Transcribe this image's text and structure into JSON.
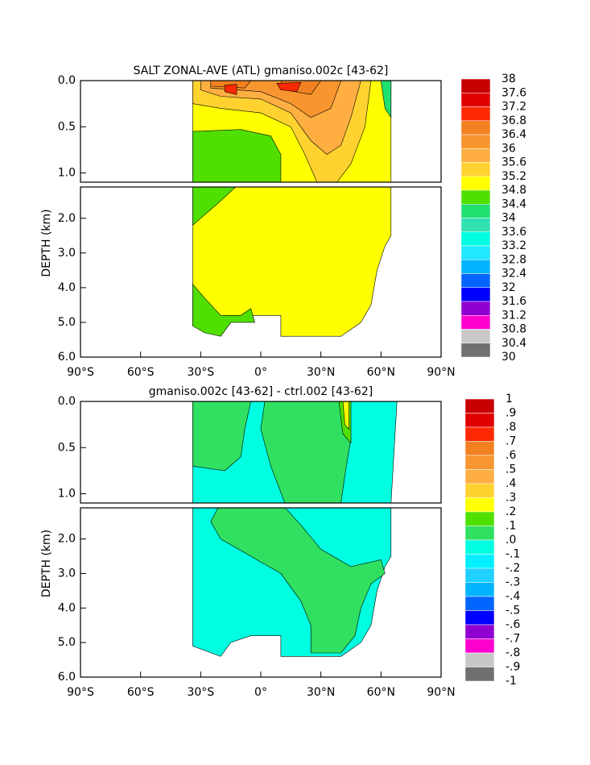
{
  "chart_data": [
    {
      "type": "contour",
      "title": "SALT ZONAL-AVE (ATL) gmaniso.002c [43-62]",
      "ylabel": "DEPTH (km)",
      "xlim": [
        -90,
        90
      ],
      "xticks": [
        {
          "value": -90,
          "label": "90°S"
        },
        {
          "value": -60,
          "label": "60°S"
        },
        {
          "value": -30,
          "label": "30°S"
        },
        {
          "value": 0,
          "label": "0°"
        },
        {
          "value": 30,
          "label": "30°N"
        },
        {
          "value": 60,
          "label": "60°N"
        },
        {
          "value": 90,
          "label": "90°N"
        }
      ],
      "ylim": [
        6,
        0
      ],
      "yranges": [
        [
          0,
          1.1
        ],
        [
          1.1,
          6
        ]
      ],
      "yticks": [
        {
          "value": 0,
          "label": "0.0"
        },
        {
          "value": 0.5,
          "label": "0.5"
        },
        {
          "value": 1,
          "label": "1.0"
        },
        {
          "value": 2,
          "label": "2.0"
        },
        {
          "value": 3,
          "label": "3.0"
        },
        {
          "value": 4,
          "label": "4.0"
        },
        {
          "value": 5,
          "label": "5.0"
        },
        {
          "value": 6,
          "label": "6.0"
        }
      ],
      "colorbar": {
        "levels": [
          38,
          37.6,
          37.2,
          36.8,
          36.4,
          36,
          35.6,
          35.2,
          34.8,
          34.4,
          34,
          33.6,
          33.2,
          32.8,
          32.4,
          32,
          31.6,
          31.2,
          30.8,
          30.4,
          30
        ],
        "colors": [
          "#c80000",
          "#e00000",
          "#ff2800",
          "#f28020",
          "#f7962e",
          "#ffae42",
          "#ffd230",
          "#ffff00",
          "#50e000",
          "#20e070",
          "#30e0b0",
          "#00ffe0",
          "#20e8ff",
          "#00b4ff",
          "#0064ff",
          "#0000ff",
          "#9000d0",
          "#ff00d0",
          "#c8c8c8",
          "#707070"
        ]
      }
    },
    {
      "type": "contour",
      "title": "gmaniso.002c [43-62] - ctrl.002 [43-62]",
      "ylabel": "DEPTH (km)",
      "xlim": [
        -90,
        90
      ],
      "xticks": [
        {
          "value": -90,
          "label": "90°S"
        },
        {
          "value": -60,
          "label": "60°S"
        },
        {
          "value": -30,
          "label": "30°S"
        },
        {
          "value": 0,
          "label": "0°"
        },
        {
          "value": 30,
          "label": "30°N"
        },
        {
          "value": 60,
          "label": "60°N"
        },
        {
          "value": 90,
          "label": "90°N"
        }
      ],
      "ylim": [
        6,
        0
      ],
      "yranges": [
        [
          0,
          1.1
        ],
        [
          1.1,
          6
        ]
      ],
      "yticks": [
        {
          "value": 0,
          "label": "0.0"
        },
        {
          "value": 0.5,
          "label": "0.5"
        },
        {
          "value": 1,
          "label": "1.0"
        },
        {
          "value": 2,
          "label": "2.0"
        },
        {
          "value": 3,
          "label": "3.0"
        },
        {
          "value": 4,
          "label": "4.0"
        },
        {
          "value": 5,
          "label": "5.0"
        },
        {
          "value": 6,
          "label": "6.0"
        }
      ],
      "colorbar": {
        "levels": [
          1,
          {
            "value": 0.9,
            "label": ".9"
          },
          {
            "value": 0.8,
            "label": ".8"
          },
          {
            "value": 0.7,
            "label": ".7"
          },
          {
            "value": 0.6,
            "label": ".6"
          },
          {
            "value": 0.5,
            "label": ".5"
          },
          {
            "value": 0.4,
            "label": ".4"
          },
          {
            "value": 0.3,
            "label": ".3"
          },
          {
            "value": 0.2,
            "label": ".2"
          },
          {
            "value": 0.1,
            "label": ".1"
          },
          {
            "value": 0,
            "label": ".0"
          },
          {
            "value": -0.1,
            "label": "-.1"
          },
          {
            "value": -0.2,
            "label": "-.2"
          },
          {
            "value": -0.3,
            "label": "-.3"
          },
          {
            "value": -0.4,
            "label": "-.4"
          },
          {
            "value": -0.5,
            "label": "-.5"
          },
          {
            "value": -0.6,
            "label": "-.6"
          },
          {
            "value": -0.7,
            "label": "-.7"
          },
          {
            "value": -0.8,
            "label": "-.8"
          },
          {
            "value": -0.9,
            "label": "-.9"
          },
          -1
        ],
        "colors": [
          "#c80000",
          "#e00000",
          "#ff2800",
          "#f28020",
          "#f7962e",
          "#ffae42",
          "#ffd230",
          "#ffff00",
          "#50e000",
          "#30e060",
          "#00ffe0",
          "#00f0ff",
          "#20d0ff",
          "#00b4ff",
          "#0064ff",
          "#0000ff",
          "#9000d0",
          "#ff00d0",
          "#c8c8c8",
          "#707070"
        ]
      }
    }
  ]
}
